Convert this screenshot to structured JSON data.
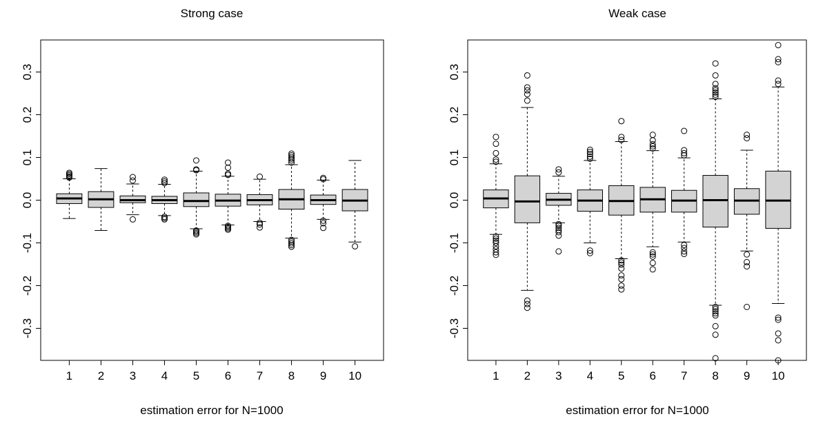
{
  "chart_data": [
    {
      "type": "boxplot",
      "title": "Strong case",
      "xlabel": "estimation error for N=1000",
      "ylabel": "",
      "ylim": [
        -0.375,
        0.375
      ],
      "categories": [
        "1",
        "2",
        "3",
        "4",
        "5",
        "6",
        "7",
        "8",
        "9",
        "10"
      ],
      "yticks": [
        -0.3,
        -0.2,
        -0.1,
        0.0,
        0.1,
        0.2,
        0.3
      ],
      "ytick_labels": [
        "-0.3",
        "-0.2",
        "-0.1",
        "0.0",
        "0.1",
        "0.2",
        "0.3"
      ],
      "boxes": [
        {
          "q1": -0.008,
          "median": 0.004,
          "q3": 0.015,
          "whisker_low": -0.043,
          "whisker_high": 0.05,
          "outliers": [
            0.053,
            0.055,
            0.058,
            0.061,
            0.064
          ]
        },
        {
          "q1": -0.017,
          "median": 0.002,
          "q3": 0.02,
          "whisker_low": -0.071,
          "whisker_high": 0.074,
          "outliers": []
        },
        {
          "q1": -0.006,
          "median": 0.0,
          "q3": 0.01,
          "whisker_low": -0.034,
          "whisker_high": 0.038,
          "outliers": [
            -0.045,
            0.046,
            0.054
          ]
        },
        {
          "q1": -0.008,
          "median": 0.0,
          "q3": 0.009,
          "whisker_low": -0.036,
          "whisker_high": 0.037,
          "outliers": [
            -0.039,
            -0.042,
            -0.045,
            0.04,
            0.044,
            0.048
          ]
        },
        {
          "q1": -0.015,
          "median": -0.002,
          "q3": 0.017,
          "whisker_low": -0.067,
          "whisker_high": 0.068,
          "outliers": [
            -0.071,
            -0.074,
            -0.077,
            -0.08,
            0.07,
            0.072,
            0.093
          ]
        },
        {
          "q1": -0.014,
          "median": -0.001,
          "q3": 0.014,
          "whisker_low": -0.058,
          "whisker_high": 0.056,
          "outliers": [
            -0.06,
            -0.063,
            -0.066,
            -0.069,
            0.059,
            0.062,
            0.076,
            0.088
          ]
        },
        {
          "q1": -0.011,
          "median": 0.0,
          "q3": 0.013,
          "whisker_low": -0.05,
          "whisker_high": 0.049,
          "outliers": [
            -0.053,
            -0.057,
            -0.064,
            0.055
          ]
        },
        {
          "q1": -0.021,
          "median": 0.002,
          "q3": 0.025,
          "whisker_low": -0.089,
          "whisker_high": 0.083,
          "outliers": [
            -0.093,
            -0.097,
            -0.101,
            -0.105,
            -0.109,
            0.088,
            0.093,
            0.097,
            0.101,
            0.105,
            0.109
          ]
        },
        {
          "q1": -0.01,
          "median": 0.0,
          "q3": 0.012,
          "whisker_low": -0.045,
          "whisker_high": 0.047,
          "outliers": [
            -0.048,
            -0.054,
            -0.065,
            0.049,
            0.052
          ]
        },
        {
          "q1": -0.025,
          "median": -0.001,
          "q3": 0.025,
          "whisker_low": -0.098,
          "whisker_high": 0.093,
          "outliers": [
            -0.108
          ]
        }
      ]
    },
    {
      "type": "boxplot",
      "title": "Weak case",
      "xlabel": "estimation error for N=1000",
      "ylabel": "",
      "ylim": [
        -0.375,
        0.375
      ],
      "categories": [
        "1",
        "2",
        "3",
        "4",
        "5",
        "6",
        "7",
        "8",
        "9",
        "10"
      ],
      "yticks": [
        -0.3,
        -0.2,
        -0.1,
        0.0,
        0.1,
        0.2,
        0.3
      ],
      "ytick_labels": [
        "-0.3",
        "-0.2",
        "-0.1",
        "0.0",
        "0.1",
        "0.2",
        "0.3"
      ],
      "boxes": [
        {
          "q1": -0.018,
          "median": 0.004,
          "q3": 0.024,
          "whisker_low": -0.08,
          "whisker_high": 0.085,
          "outliers": [
            -0.085,
            -0.09,
            -0.095,
            -0.1,
            -0.108,
            -0.115,
            -0.122,
            -0.128,
            0.09,
            0.095,
            0.11,
            0.132,
            0.148
          ]
        },
        {
          "q1": -0.053,
          "median": -0.003,
          "q3": 0.057,
          "whisker_low": -0.211,
          "whisker_high": 0.217,
          "outliers": [
            -0.235,
            -0.243,
            -0.252,
            0.233,
            0.248,
            0.257,
            0.264,
            0.292
          ]
        },
        {
          "q1": -0.012,
          "median": 0.001,
          "q3": 0.016,
          "whisker_low": -0.053,
          "whisker_high": 0.056,
          "outliers": [
            -0.056,
            -0.06,
            -0.065,
            -0.07,
            -0.075,
            -0.083,
            -0.12,
            0.065,
            0.072
          ]
        },
        {
          "q1": -0.026,
          "median": -0.001,
          "q3": 0.024,
          "whisker_low": -0.1,
          "whisker_high": 0.093,
          "outliers": [
            -0.118,
            -0.124,
            0.097,
            0.102,
            0.108,
            0.113,
            0.118
          ]
        },
        {
          "q1": -0.035,
          "median": -0.002,
          "q3": 0.034,
          "whisker_low": -0.137,
          "whisker_high": 0.137,
          "outliers": [
            -0.141,
            -0.146,
            -0.151,
            -0.16,
            -0.176,
            -0.185,
            -0.2,
            -0.209,
            0.141,
            0.148,
            0.185
          ]
        },
        {
          "q1": -0.028,
          "median": 0.002,
          "q3": 0.03,
          "whisker_low": -0.109,
          "whisker_high": 0.116,
          "outliers": [
            -0.122,
            -0.127,
            -0.132,
            -0.147,
            -0.162,
            0.121,
            0.126,
            0.131,
            0.14,
            0.153
          ]
        },
        {
          "q1": -0.028,
          "median": -0.001,
          "q3": 0.023,
          "whisker_low": -0.098,
          "whisker_high": 0.099,
          "outliers": [
            -0.105,
            -0.112,
            -0.12,
            -0.126,
            0.105,
            0.11,
            0.117,
            0.162
          ]
        },
        {
          "q1": -0.063,
          "median": 0.0,
          "q3": 0.058,
          "whisker_low": -0.246,
          "whisker_high": 0.237,
          "outliers": [
            -0.25,
            -0.255,
            -0.26,
            -0.265,
            -0.27,
            -0.295,
            -0.315,
            -0.37,
            0.242,
            0.247,
            0.252,
            0.257,
            0.262,
            0.272,
            0.292,
            0.32
          ]
        },
        {
          "q1": -0.033,
          "median": -0.001,
          "q3": 0.027,
          "whisker_low": -0.119,
          "whisker_high": 0.117,
          "outliers": [
            -0.127,
            -0.145,
            -0.155,
            -0.25,
            0.145,
            0.153
          ]
        },
        {
          "q1": -0.066,
          "median": -0.001,
          "q3": 0.068,
          "whisker_low": -0.242,
          "whisker_high": 0.265,
          "outliers": [
            -0.275,
            -0.28,
            -0.312,
            -0.328,
            -0.375,
            0.272,
            0.28,
            0.323,
            0.33,
            0.363
          ]
        }
      ]
    }
  ]
}
